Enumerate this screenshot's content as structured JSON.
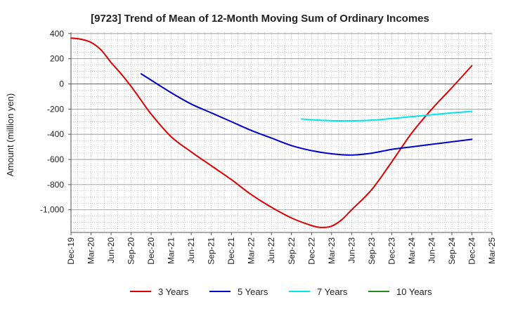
{
  "chart_data": {
    "type": "line",
    "title": "[9723]  Trend of Mean of 12-Month Moving Sum of Ordinary Incomes",
    "ylabel": "Amount (million yen)",
    "xlabel": "",
    "ylim": [
      -1180,
      410
    ],
    "yticks": [
      400,
      200,
      0,
      -200,
      -400,
      -600,
      -800,
      -1000
    ],
    "ytick_labels": [
      "400",
      "200",
      "0",
      "-200",
      "-400",
      "-600",
      "-800",
      "-1,000"
    ],
    "x_tick_labels": [
      "Dec-19",
      "Mar-20",
      "Jun-20",
      "Sep-20",
      "Dec-20",
      "Mar-21",
      "Jun-21",
      "Sep-21",
      "Dec-21",
      "Mar-22",
      "Jun-22",
      "Sep-22",
      "Dec-22",
      "Mar-23",
      "Jun-23",
      "Sep-23",
      "Dec-23",
      "Mar-24",
      "Jun-24",
      "Sep-24",
      "Dec-24",
      "Mar-25"
    ],
    "x_domain": [
      0,
      21
    ],
    "series": [
      {
        "name": "3 Years",
        "color": "#dd0000",
        "x": [
          0,
          0.5,
          1,
          1.5,
          2,
          2.5,
          3,
          3.5,
          4,
          5,
          6,
          7,
          8,
          9,
          10,
          11,
          12,
          12.5,
          13,
          13.5,
          14,
          15,
          16,
          17,
          18,
          19,
          20
        ],
        "y": [
          365,
          355,
          330,
          270,
          170,
          80,
          -20,
          -130,
          -240,
          -420,
          -540,
          -650,
          -760,
          -880,
          -980,
          -1065,
          -1125,
          -1140,
          -1130,
          -1080,
          -1000,
          -840,
          -620,
          -390,
          -200,
          -30,
          145
        ]
      },
      {
        "name": "5 Years",
        "color": "#0000cc",
        "x": [
          3.5,
          4,
          5,
          6,
          7,
          8,
          9,
          10,
          11,
          12,
          13,
          14,
          15,
          16,
          17,
          18,
          19,
          20
        ],
        "y": [
          80,
          30,
          -70,
          -160,
          -230,
          -300,
          -370,
          -430,
          -490,
          -530,
          -555,
          -565,
          -550,
          -520,
          -500,
          -480,
          -460,
          -440
        ]
      },
      {
        "name": "7 Years",
        "color": "#00e5e5",
        "x": [
          11.5,
          12,
          13,
          14,
          15,
          16,
          17,
          18,
          19,
          20
        ],
        "y": [
          -278,
          -285,
          -292,
          -293,
          -288,
          -275,
          -260,
          -245,
          -230,
          -218
        ]
      },
      {
        "name": "10 Years",
        "color": "#228b22",
        "x": [],
        "y": []
      }
    ],
    "legend_position": "bottom"
  }
}
